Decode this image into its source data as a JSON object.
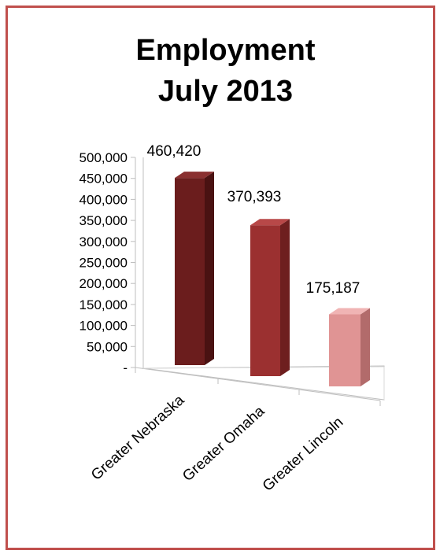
{
  "chart_data": {
    "type": "bar",
    "title_lines": [
      "Employment",
      "July 2013"
    ],
    "categories": [
      "Greater Nebraska",
      "Greater Omaha",
      "Greater Lincoln"
    ],
    "values": [
      460420,
      370393,
      175187
    ],
    "data_labels": [
      "460,420",
      "370,393",
      "175,187"
    ],
    "ylim": [
      0,
      500000
    ],
    "yticks": [
      {
        "value": 0,
        "label": "-"
      },
      {
        "value": 50000,
        "label": "50,000"
      },
      {
        "value": 100000,
        "label": "100,000"
      },
      {
        "value": 150000,
        "label": "150,000"
      },
      {
        "value": 200000,
        "label": "200,000"
      },
      {
        "value": 250000,
        "label": "250,000"
      },
      {
        "value": 300000,
        "label": "300,000"
      },
      {
        "value": 350000,
        "label": "350,000"
      },
      {
        "value": 400000,
        "label": "400,000"
      },
      {
        "value": 450000,
        "label": "450,000"
      },
      {
        "value": 500000,
        "label": "500,000"
      }
    ],
    "colors": [
      "#6b1d1d",
      "#9b3030",
      "#e09494"
    ],
    "side_colors": [
      "#4a1212",
      "#6e1f1f",
      "#b26b6b"
    ],
    "top_colors": [
      "#8a3030",
      "#b84848",
      "#f0b4b4"
    ],
    "grid": false,
    "style": "3d"
  }
}
